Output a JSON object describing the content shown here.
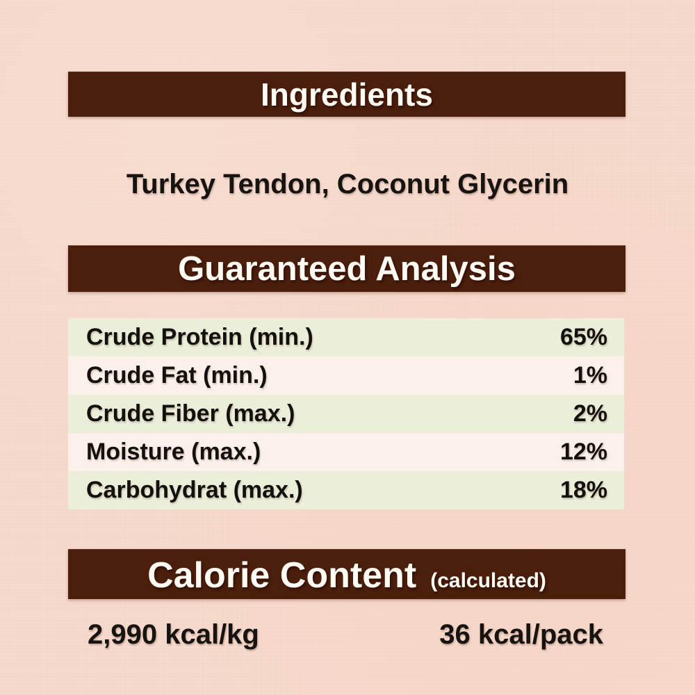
{
  "page": {
    "background_color": "#f6d9cb",
    "bar_color": "#4c1e0c",
    "bar_text_color": "#fdfbf4"
  },
  "ingredients": {
    "header": "Ingredients",
    "list": "Turkey Tendon, Coconut Glycerin"
  },
  "guaranteed_analysis": {
    "header": "Guaranteed Analysis",
    "row_colors": {
      "odd": "#ebeed9",
      "even": "#fbf0ea"
    },
    "rows": [
      {
        "label": "Crude Protein (min.)",
        "value": "65%"
      },
      {
        "label": "Crude Fat (min.)",
        "value": "1%"
      },
      {
        "label": "Crude Fiber (max.)",
        "value": "2%"
      },
      {
        "label": "Moisture (max.)",
        "value": "12%"
      },
      {
        "label": "Carbohydrat (max.)",
        "value": "18%"
      }
    ]
  },
  "calorie_content": {
    "header": "Calorie Content",
    "header_note": "(calculated)",
    "per_kg": "2,990 kcal/kg",
    "per_pack": "36 kcal/pack"
  }
}
